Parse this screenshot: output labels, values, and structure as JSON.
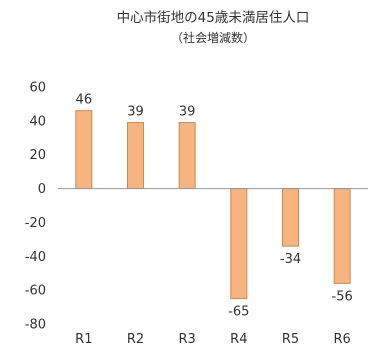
{
  "chart_data": {
    "type": "bar",
    "title": "中心市街地の45歳未満居住人口",
    "subtitle": "（社会増減数）",
    "categories": [
      "R1",
      "R2",
      "R3",
      "R4",
      "R5",
      "R6"
    ],
    "values": [
      46,
      39,
      39,
      -65,
      -34,
      -56
    ],
    "ylim": [
      -80,
      60
    ],
    "yticks": [
      60,
      40,
      20,
      0,
      -20,
      -40,
      -60,
      -80
    ],
    "grid": false,
    "legend": "none",
    "colors": {
      "bar_fill": "#f7b47e",
      "bar_stroke": "#c98a55",
      "axis": "#9a9a9a"
    }
  }
}
